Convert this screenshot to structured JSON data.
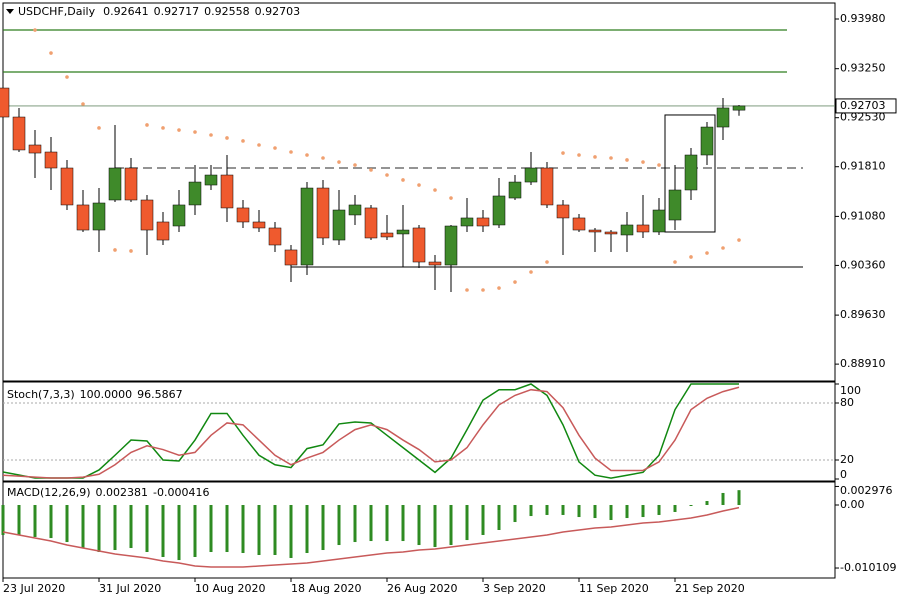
{
  "chart_data": [
    {
      "type": "candlestick",
      "title": "USDCHF,Daily",
      "categories": [
        "23 Jul 2020",
        null,
        null,
        null,
        null,
        null,
        "31 Jul 2020",
        null,
        null,
        null,
        null,
        null,
        "10 Aug 2020",
        null,
        null,
        null,
        null,
        null,
        "18 Aug 2020",
        null,
        null,
        null,
        null,
        null,
        "26 Aug 2020",
        null,
        null,
        null,
        null,
        null,
        "3 Sep 2020",
        null,
        null,
        null,
        null,
        null,
        "11 Sep 2020",
        null,
        null,
        null,
        null,
        null,
        "21 Sep 2020",
        null,
        null,
        null,
        null
      ],
      "open": [
        0.92966,
        0.9254,
        0.92129,
        0.92026,
        0.91791,
        0.91248,
        0.9088,
        0.91321,
        0.91791,
        0.91321,
        0.90998,
        0.90939,
        0.91248,
        0.91541,
        0.91688,
        0.91204,
        0.90998,
        0.9091,
        0.90587,
        0.90366,
        0.91497,
        0.90733,
        0.91101,
        0.91204,
        0.90836,
        0.90822,
        0.9091,
        0.9041,
        0.90366,
        0.90939,
        0.91057,
        0.90954,
        0.9135,
        0.91585,
        0.91791,
        0.91248,
        0.91057,
        0.9088,
        0.90851,
        0.90807,
        0.90954,
        0.90851,
        0.91027,
        0.91468,
        0.91982,
        0.92393,
        0.92641
      ],
      "high": [
        0.92966,
        0.92673,
        0.92349,
        0.92247,
        0.91909,
        0.91468,
        0.91497,
        0.92423,
        0.91938,
        0.91394,
        0.91145,
        0.91468,
        0.91835,
        0.91835,
        0.91982,
        0.91321,
        0.91174,
        0.90998,
        0.9066,
        0.91585,
        0.91615,
        0.91468,
        0.91394,
        0.91248,
        0.91101,
        0.91248,
        0.90954,
        0.90513,
        0.90954,
        0.9135,
        0.91174,
        0.91644,
        0.91688,
        0.92026,
        0.91879,
        0.91321,
        0.91115,
        0.9091,
        0.9088,
        0.91145,
        0.91394,
        0.9135,
        0.91835,
        0.92085,
        0.92467,
        0.92819,
        0.92717
      ],
      "low": [
        0.92496,
        0.92026,
        0.91644,
        0.91468,
        0.91174,
        0.90851,
        0.90557,
        0.91292,
        0.91292,
        0.90513,
        0.9066,
        0.90851,
        0.91101,
        0.91468,
        0.90998,
        0.9091,
        0.90851,
        0.90557,
        0.90116,
        0.90219,
        0.9066,
        0.9066,
        0.90954,
        0.90733,
        0.90733,
        0.90337,
        0.90322,
        0.89999,
        0.8997,
        0.90851,
        0.90851,
        0.9091,
        0.91321,
        0.91541,
        0.91204,
        0.90513,
        0.90851,
        0.90557,
        0.90557,
        0.90557,
        0.90763,
        0.90807,
        0.9088,
        0.91321,
        0.91835,
        0.92202,
        0.92558
      ],
      "close": [
        0.9254,
        0.92056,
        0.92011,
        0.91791,
        0.91248,
        0.9088,
        0.91277,
        0.91791,
        0.91321,
        0.9088,
        0.90733,
        0.91248,
        0.91585,
        0.91688,
        0.91204,
        0.90998,
        0.9091,
        0.9066,
        0.90366,
        0.91497,
        0.90763,
        0.91174,
        0.91248,
        0.90763,
        0.90778,
        0.9088,
        0.9041,
        0.90366,
        0.90939,
        0.91057,
        0.90939,
        0.9138,
        0.91585,
        0.91791,
        0.91248,
        0.91057,
        0.9088,
        0.90851,
        0.90822,
        0.90954,
        0.90851,
        0.91174,
        0.91468,
        0.91982,
        0.92393,
        0.92673,
        0.92703
      ],
      "up_color": "#3f8a2a",
      "down_color": "#ef5a2e",
      "sar": {
        "color": "#f0a070",
        "values": [
          null,
          null,
          0.93818,
          0.9348,
          0.93128,
          0.92731,
          0.92379,
          0.90587,
          0.90572,
          0.92423,
          0.92379,
          0.92349,
          0.9232,
          0.92276,
          0.92232,
          0.92188,
          0.92129,
          0.92085,
          0.92026,
          0.91982,
          0.91938,
          0.91879,
          0.91835,
          0.91762,
          0.91688,
          0.91615,
          0.91541,
          0.91468,
          0.9135,
          0.89999,
          0.89999,
          0.90028,
          0.90116,
          0.90263,
          0.9041,
          0.92011,
          0.91982,
          0.91953,
          0.91938,
          0.91909,
          0.91879,
          0.91835,
          0.9041,
          0.90484,
          0.90542,
          0.90616,
          0.90733
        ]
      },
      "hlines": [
        {
          "value": 0.93818,
          "color": "#2e7d1e",
          "dashed": false,
          "x": [
            0,
            49
          ]
        },
        {
          "value": 0.93201,
          "color": "#2e7d1e",
          "dashed": false,
          "x": [
            0,
            49
          ]
        },
        {
          "value": 0.91791,
          "color": "#555555",
          "dashed": true,
          "x": [
            7,
            50
          ]
        },
        {
          "value": 0.90337,
          "color": "#333333",
          "dashed": false,
          "x": [
            18,
            50
          ]
        }
      ],
      "box": {
        "top": 0.9257,
        "bottom": 0.90851,
        "x": [
          41,
          44
        ],
        "color": "#000000"
      },
      "last_price_color": "#6b8e6b",
      "ylim": [
        0.88662,
        0.94215
      ],
      "yticks": [
        {
          "value": 0.9398,
          "label": "0.93980"
        },
        {
          "value": 0.9325,
          "label": "0.93250"
        },
        {
          "value": 0.9253,
          "label": "0.92530"
        },
        {
          "value": 0.9181,
          "label": "0.91810"
        },
        {
          "value": 0.9108,
          "label": "0.91080"
        },
        {
          "value": 0.9036,
          "label": "0.90360"
        },
        {
          "value": 0.8963,
          "label": "0.89630"
        },
        {
          "value": 0.8891,
          "label": "0.88910"
        }
      ]
    },
    {
      "type": "line",
      "title": "Stoch(7,3,3)",
      "series": [
        {
          "color": "#118811",
          "values": [
            7.4,
            4.2,
            1,
            1,
            1,
            1,
            9.5,
            25,
            41,
            40,
            20,
            19,
            41,
            69,
            69,
            46,
            25,
            15,
            12,
            32,
            36,
            58,
            60,
            59,
            46,
            33,
            20,
            7,
            22,
            52,
            83,
            94,
            94,
            100,
            88,
            57,
            18,
            4,
            1,
            4,
            7,
            25,
            73,
            100,
            100,
            100,
            100
          ],
          "value_labels": [
            null,
            null,
            null,
            null,
            null,
            null,
            null,
            null,
            null,
            null,
            null,
            null,
            null,
            null,
            null,
            null,
            null,
            null,
            null,
            null,
            null,
            null,
            null,
            null,
            null,
            null,
            null,
            null,
            null,
            null,
            null,
            null,
            null,
            null,
            null,
            null,
            null,
            null,
            null,
            null,
            null,
            null,
            null,
            null,
            null,
            null,
            "100.0000"
          ]
        },
        {
          "color": "#c85a5a",
          "values": [
            4,
            3,
            2,
            1,
            1,
            2,
            5,
            15,
            28,
            35,
            31,
            25,
            28,
            46,
            59,
            57,
            41,
            25,
            15,
            22,
            28,
            41,
            52,
            57,
            52,
            41,
            31,
            18,
            20,
            33,
            57,
            78,
            88,
            94,
            92,
            75,
            46,
            22,
            9,
            9,
            9,
            18,
            41,
            73,
            85,
            92,
            96.5867
          ]
        }
      ],
      "levels": [
        80,
        20
      ],
      "ylim": [
        -2.1,
        102.1
      ],
      "yticks": [
        100,
        80,
        20,
        0
      ]
    },
    {
      "type": "macd",
      "title": "MACD(12,26,9)",
      "series": [
        {
          "color": "#2e8b22",
          "values": [
            -0.00481,
            -0.00481,
            -0.00513,
            -0.0053,
            -0.00594,
            -0.0069,
            -0.00754,
            -0.00722,
            -0.0069,
            -0.00754,
            -0.00834,
            -0.00883,
            -0.00834,
            -0.00754,
            -0.00754,
            -0.0077,
            -0.00802,
            -0.00802,
            -0.0085,
            -0.0077,
            -0.00722,
            -0.00642,
            -0.00594,
            -0.00578,
            -0.00578,
            -0.00578,
            -0.00642,
            -0.00674,
            -0.00642,
            -0.00562,
            -0.00481,
            -0.00401,
            -0.00273,
            -0.00177,
            -0.0016,
            -0.0016,
            -0.00193,
            -0.00209,
            -0.00241,
            -0.00209,
            -0.00193,
            -0.0016,
            -0.00112,
            -0.00016,
            0.00064,
            0.00193,
            0.002381
          ]
        },
        {
          "color": "#c85a5a",
          "values": [
            -0.00433,
            -0.00481,
            -0.0053,
            -0.00578,
            -0.00642,
            -0.0069,
            -0.00738,
            -0.00786,
            -0.00818,
            -0.0085,
            -0.00899,
            -0.00931,
            -0.00979,
            -0.00995,
            -0.00995,
            -0.00995,
            -0.00979,
            -0.00963,
            -0.00947,
            -0.00931,
            -0.00899,
            -0.00867,
            -0.00834,
            -0.00802,
            -0.0077,
            -0.00754,
            -0.00722,
            -0.00706,
            -0.00674,
            -0.00642,
            -0.0061,
            -0.00578,
            -0.00546,
            -0.00513,
            -0.00481,
            -0.00433,
            -0.00401,
            -0.00369,
            -0.00353,
            -0.00321,
            -0.00289,
            -0.00273,
            -0.00241,
            -0.00209,
            -0.0016,
            -0.00096,
            -0.000416
          ]
        }
      ],
      "ylim": [
        -0.01171,
        0.00369
      ],
      "yticks": [
        0.002976,
        {
          "value": 0,
          "label": "0.00"
        },
        -0.010109
      ]
    }
  ]
}
